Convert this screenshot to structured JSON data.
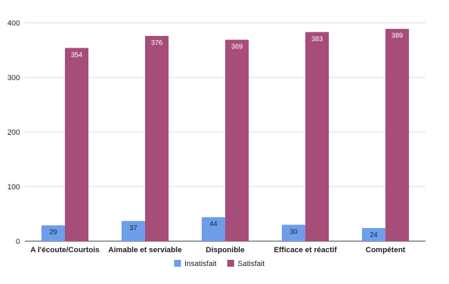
{
  "chart_data": {
    "type": "bar",
    "title": "",
    "xlabel": "",
    "ylabel": "",
    "ylim": [
      0,
      400
    ],
    "yticks": [
      "0",
      "100",
      "200",
      "300",
      "400"
    ],
    "grid": true,
    "legend_position": "bottom",
    "categories": [
      "A l'écoute/Courtois",
      "Aimable et serviable",
      "Disponible",
      "Efficace et réactif",
      "Compétent"
    ],
    "series": [
      {
        "name": "Insatisfait",
        "color": "#6d9eeb",
        "values": [
          29,
          37,
          44,
          30,
          24
        ]
      },
      {
        "name": "Satisfait",
        "color": "#a64d79",
        "values": [
          354,
          376,
          369,
          383,
          389
        ]
      }
    ]
  }
}
